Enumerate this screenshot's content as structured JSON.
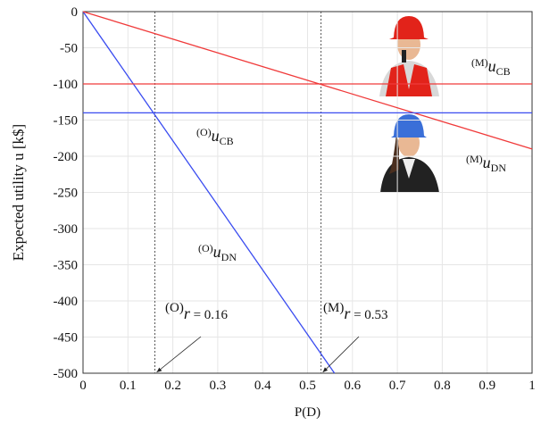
{
  "chart_data": {
    "type": "line",
    "xlabel": "P(D)",
    "ylabel": "Expected utility u [k$]",
    "xlim": [
      0,
      1
    ],
    "xticks": [
      0,
      0.1,
      0.2,
      0.3,
      0.4,
      0.5,
      0.6,
      0.7,
      0.8,
      0.9,
      1
    ],
    "ylim": [
      -500,
      0
    ],
    "yticks": [
      -500,
      -450,
      -400,
      -350,
      -300,
      -250,
      -200,
      -150,
      -100,
      -50,
      0
    ],
    "grid": true,
    "series": [
      {
        "color": "#3a4cf0",
        "x": [
          0,
          0.56
        ],
        "values": [
          0,
          -500
        ]
      },
      {
        "color": "#f03a3a",
        "x": [
          0,
          1
        ],
        "values": [
          0,
          -190
        ]
      },
      {
        "color": "#3a4cf0",
        "x": [
          0,
          1
        ],
        "values": [
          -140,
          -140
        ]
      },
      {
        "color": "#f03a3a",
        "x": [
          0,
          1
        ],
        "values": [
          -100,
          -100
        ]
      }
    ],
    "vlines": [
      0.16,
      0.53
    ],
    "line_labels": [
      {
        "prefix": "(O)",
        "symbol": "u",
        "sub": "DN"
      },
      {
        "prefix": "(M)",
        "symbol": "u",
        "sub": "DN"
      },
      {
        "prefix": "(O)",
        "symbol": "u",
        "sub": "CB"
      },
      {
        "prefix": "(M)",
        "symbol": "u",
        "sub": "CB"
      }
    ],
    "thresholds": [
      {
        "prefix": "(O)",
        "symbol": "r",
        "text": " = 0.16"
      },
      {
        "prefix": "(M)",
        "symbol": "r",
        "text": " = 0.53"
      }
    ]
  }
}
